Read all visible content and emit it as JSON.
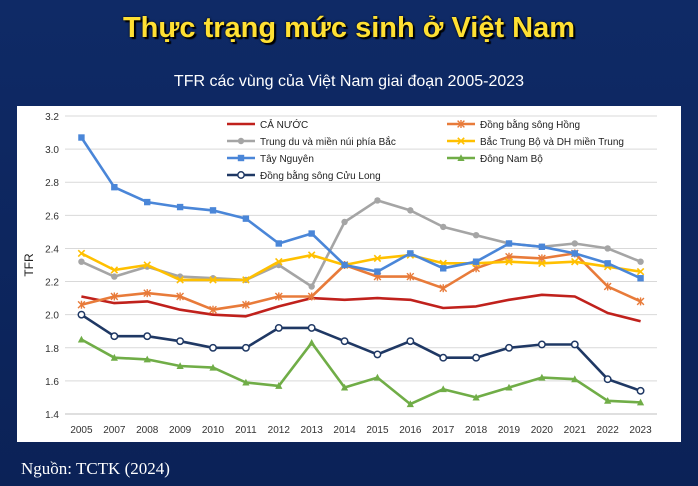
{
  "slide": {
    "title": "Thực trạng mức sinh ở Việt Nam",
    "source": "Nguồn: TCTK (2024)"
  },
  "chart_data": {
    "type": "line",
    "title": "TFR các vùng của Việt Nam giai đoạn 2005-2023",
    "ylabel": "TFR",
    "xlabel": "",
    "ylim": [
      1.4,
      3.2
    ],
    "yticks": [
      "1.4",
      "1.6",
      "1.8",
      "2.0",
      "2.2",
      "2.4",
      "2.6",
      "2.8",
      "3.0",
      "3.2"
    ],
    "grid": true,
    "legend_position": "top",
    "categories": [
      "2005",
      "2007",
      "2008",
      "2009",
      "2010",
      "2011",
      "2012",
      "2013",
      "2014",
      "2015",
      "2016",
      "2017",
      "2018",
      "2019",
      "2020",
      "2021",
      "2022",
      "2023"
    ],
    "series": [
      {
        "name": "CẢ NƯỚC",
        "color": "#c0211c",
        "marker": "none",
        "values": [
          2.11,
          2.07,
          2.08,
          2.03,
          2.0,
          1.99,
          2.05,
          2.1,
          2.09,
          2.1,
          2.09,
          2.04,
          2.05,
          2.09,
          2.12,
          2.11,
          2.01,
          1.96
        ]
      },
      {
        "name": "Đồng bằng sông Hồng",
        "color": "#e87b3a",
        "marker": "star",
        "values": [
          2.06,
          2.11,
          2.13,
          2.11,
          2.03,
          2.06,
          2.11,
          2.11,
          2.3,
          2.23,
          2.23,
          2.16,
          2.28,
          2.35,
          2.34,
          2.37,
          2.17,
          2.08
        ]
      },
      {
        "name": "Trung du và miền núi phía Bắc",
        "color": "#a5a5a5",
        "marker": "circle",
        "values": [
          2.32,
          2.23,
          2.29,
          2.23,
          2.22,
          2.21,
          2.3,
          2.17,
          2.56,
          2.69,
          2.63,
          2.53,
          2.48,
          2.43,
          2.41,
          2.43,
          2.4,
          2.32
        ]
      },
      {
        "name": "Bắc Trung Bộ và DH miền Trung",
        "color": "#ffc000",
        "marker": "x",
        "values": [
          2.37,
          2.27,
          2.3,
          2.21,
          2.21,
          2.21,
          2.32,
          2.36,
          2.3,
          2.34,
          2.36,
          2.31,
          2.31,
          2.32,
          2.31,
          2.32,
          2.29,
          2.26
        ]
      },
      {
        "name": "Tây Nguyên",
        "color": "#4a86d8",
        "marker": "square",
        "values": [
          3.07,
          2.77,
          2.68,
          2.65,
          2.63,
          2.58,
          2.43,
          2.49,
          2.3,
          2.26,
          2.37,
          2.28,
          2.32,
          2.43,
          2.41,
          2.37,
          2.31,
          2.22
        ]
      },
      {
        "name": "Đông Nam Bộ",
        "color": "#70ad47",
        "marker": "triangle",
        "values": [
          1.85,
          1.74,
          1.73,
          1.69,
          1.68,
          1.59,
          1.57,
          1.83,
          1.56,
          1.62,
          1.46,
          1.55,
          1.5,
          1.56,
          1.62,
          1.61,
          1.48,
          1.47
        ]
      },
      {
        "name": "Đồng bằng sông Cửu Long",
        "color": "#1f3864",
        "marker": "hollow-circle",
        "values": [
          2.0,
          1.87,
          1.87,
          1.84,
          1.8,
          1.8,
          1.92,
          1.92,
          1.84,
          1.76,
          1.84,
          1.74,
          1.74,
          1.8,
          1.82,
          1.82,
          1.61,
          1.54
        ]
      }
    ]
  }
}
